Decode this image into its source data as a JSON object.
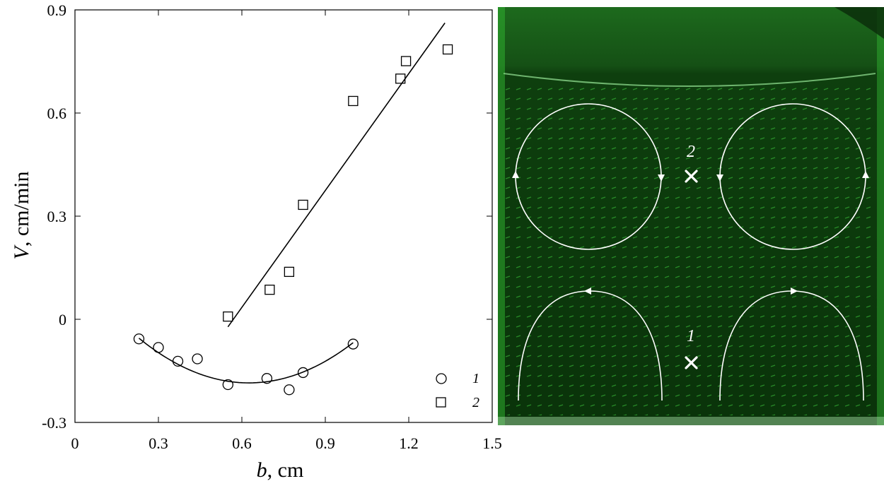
{
  "chart_data": {
    "type": "scatter",
    "xlabel": {
      "var": "b",
      "unit": ", cm"
    },
    "ylabel": {
      "var": "V",
      "unit": ", cm/min"
    },
    "xlim": [
      0,
      1.5
    ],
    "ylim": [
      -0.3,
      0.9
    ],
    "x_ticks": [
      "0",
      "0.3",
      "0.6",
      "0.9",
      "1.2",
      "1.5"
    ],
    "y_ticks": [
      "-0.3",
      "0",
      "0.3",
      "0.6",
      "0.9"
    ],
    "grid": false,
    "legend_position": "bottom-right",
    "series": [
      {
        "label": "1",
        "marker": "circle",
        "x": [
          0.23,
          0.3,
          0.37,
          0.44,
          0.55,
          0.69,
          0.77,
          0.82,
          1.0
        ],
        "y": [
          -0.057,
          -0.082,
          -0.122,
          -0.115,
          -0.19,
          -0.172,
          -0.205,
          -0.155,
          -0.072
        ],
        "fit": {
          "type": "quadratic",
          "x_range": [
            0.23,
            1.0
          ],
          "points": [
            [
              0.23,
              -0.055
            ],
            [
              0.62,
              -0.185
            ],
            [
              1.0,
              -0.068
            ]
          ]
        }
      },
      {
        "label": "2",
        "marker": "square",
        "x": [
          0.55,
          0.7,
          0.77,
          0.82,
          1.0,
          1.17,
          1.19,
          1.34
        ],
        "y": [
          0.008,
          0.086,
          0.138,
          0.333,
          0.635,
          0.7,
          0.751,
          0.785
        ],
        "fit": {
          "type": "linear",
          "x_range": [
            0.55,
            1.33
          ],
          "points": [
            [
              0.55,
              -0.022
            ],
            [
              1.33,
              0.862
            ]
          ]
        }
      }
    ]
  },
  "photo": {
    "marker_labels": [
      "2",
      "1"
    ],
    "colors": {
      "background": "#0b3a0b",
      "vectors": "#33c733",
      "overlay": "#ffffff"
    }
  }
}
